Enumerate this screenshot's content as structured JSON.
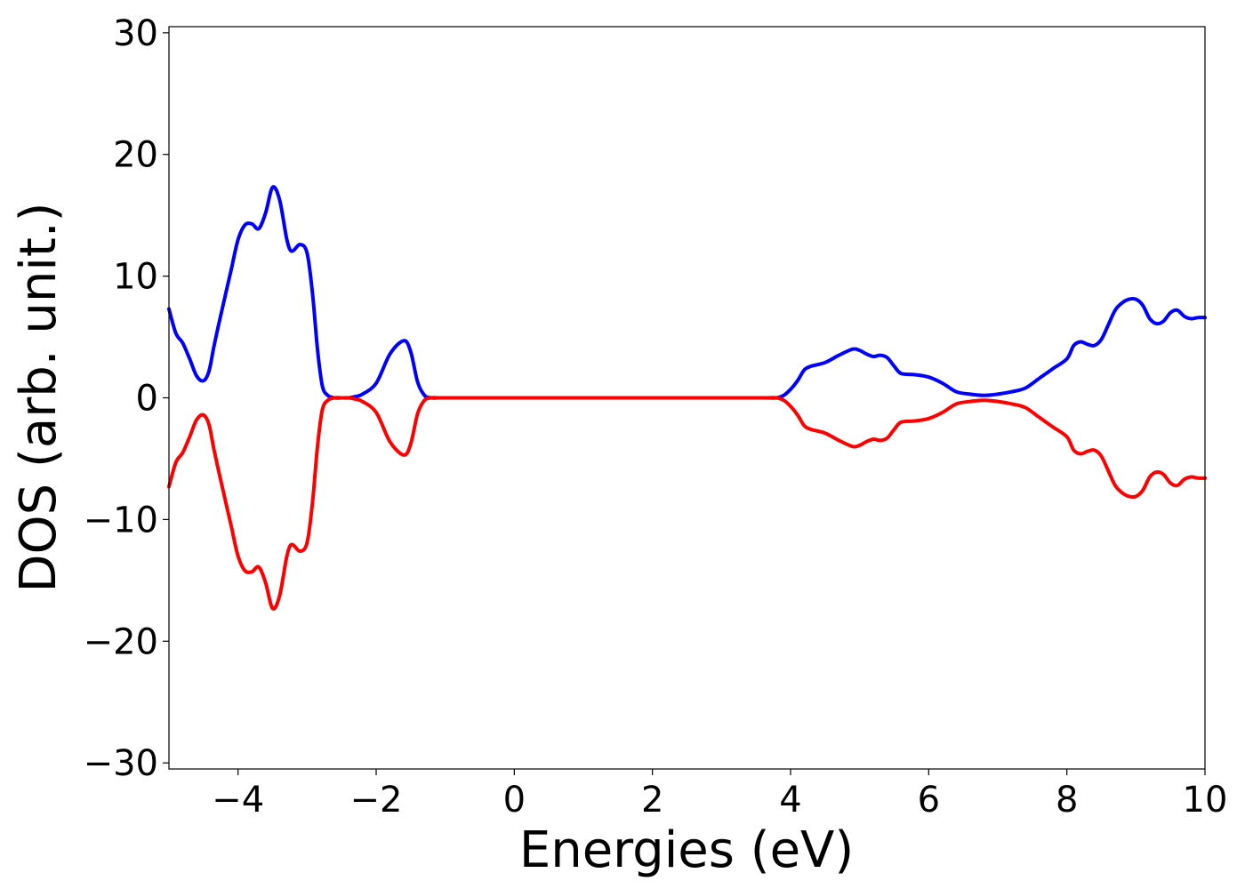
{
  "chart_data": {
    "type": "line",
    "xlabel": "Energies (eV)",
    "ylabel": "DOS (arb. unit.)",
    "xlim": [
      -5,
      10
    ],
    "ylim": [
      -30.5,
      30.5
    ],
    "xticks": [
      -4,
      -2,
      0,
      2,
      4,
      6,
      8,
      10
    ],
    "yticks": [
      -30,
      -20,
      -10,
      0,
      10,
      20,
      30
    ],
    "tick_labels_x": [
      "−4",
      "−2",
      "0",
      "2",
      "4",
      "6",
      "8",
      "10"
    ],
    "tick_labels_y": [
      "−30",
      "−20",
      "−10",
      "0",
      "10",
      "20",
      "30"
    ],
    "grid": false,
    "legend": "none",
    "series": [
      {
        "color": "#0000ff",
        "x": [
          -5.0,
          -4.9,
          -4.8,
          -4.7,
          -4.6,
          -4.5,
          -4.42,
          -4.35,
          -4.25,
          -4.1,
          -4.0,
          -3.9,
          -3.8,
          -3.7,
          -3.6,
          -3.5,
          -3.4,
          -3.3,
          -3.25,
          -3.2,
          -3.1,
          -3.0,
          -2.92,
          -2.85,
          -2.78,
          -2.7,
          -2.6,
          -2.5,
          -2.4,
          -2.3,
          -2.2,
          -2.0,
          -1.8,
          -1.6,
          -1.5,
          -1.4,
          -1.3,
          -1.2,
          -1.1,
          -1.02,
          -0.95,
          -0.85,
          -0.75,
          -0.65,
          -0.55,
          -0.5,
          0.0,
          1.0,
          2.0,
          3.0,
          3.6,
          3.8,
          3.9,
          4.0,
          4.1,
          4.2,
          4.3,
          4.5,
          4.7,
          4.9,
          5.0,
          5.1,
          5.2,
          5.3,
          5.4,
          5.5,
          5.6,
          5.8,
          6.0,
          6.2,
          6.4,
          6.6,
          6.8,
          7.0,
          7.2,
          7.4,
          7.6,
          7.8,
          8.0,
          8.1,
          8.2,
          8.3,
          8.4,
          8.5,
          8.6,
          8.7,
          8.8,
          8.9,
          9.0,
          9.1,
          9.2,
          9.3,
          9.4,
          9.5,
          9.6,
          9.7,
          9.8,
          9.9,
          10.0
        ],
        "y": [
          7.3,
          5.3,
          4.5,
          3.2,
          1.8,
          1.4,
          2.2,
          4.2,
          6.8,
          10.5,
          13.0,
          14.2,
          14.3,
          13.9,
          15.2,
          17.3,
          16.3,
          13.2,
          12.2,
          12.1,
          12.6,
          11.9,
          8.5,
          4.0,
          1.0,
          0.2,
          0.0,
          0.0,
          0.0,
          0.1,
          0.3,
          1.2,
          3.6,
          4.7,
          3.8,
          1.3,
          0.2,
          0.0,
          0.0,
          0.0,
          0.0,
          0.0,
          0.0,
          0.0,
          0.0,
          0.0,
          0.0,
          0.0,
          0.0,
          0.0,
          0.0,
          0.0,
          0.2,
          0.7,
          1.4,
          2.3,
          2.6,
          2.9,
          3.5,
          4.0,
          3.9,
          3.6,
          3.4,
          3.5,
          3.3,
          2.6,
          2.0,
          1.9,
          1.7,
          1.2,
          0.5,
          0.3,
          0.2,
          0.3,
          0.5,
          0.8,
          1.6,
          2.4,
          3.2,
          4.3,
          4.6,
          4.4,
          4.3,
          4.8,
          6.0,
          7.2,
          7.8,
          8.1,
          8.1,
          7.6,
          6.5,
          6.1,
          6.3,
          7.0,
          7.2,
          6.7,
          6.5,
          6.6,
          6.6
        ]
      },
      {
        "color": "#ff0000",
        "x": [
          -5.0,
          -4.9,
          -4.8,
          -4.7,
          -4.6,
          -4.5,
          -4.42,
          -4.35,
          -4.25,
          -4.1,
          -4.0,
          -3.9,
          -3.8,
          -3.7,
          -3.6,
          -3.5,
          -3.4,
          -3.3,
          -3.25,
          -3.2,
          -3.1,
          -3.0,
          -2.92,
          -2.85,
          -2.78,
          -2.7,
          -2.6,
          -2.5,
          -2.4,
          -2.3,
          -2.2,
          -2.0,
          -1.8,
          -1.6,
          -1.5,
          -1.4,
          -1.3,
          -1.2,
          -1.1,
          -1.02,
          -0.95,
          -0.85,
          -0.75,
          -0.65,
          -0.55,
          -0.5,
          0.0,
          1.0,
          2.0,
          3.0,
          3.6,
          3.8,
          3.9,
          4.0,
          4.1,
          4.2,
          4.3,
          4.5,
          4.7,
          4.9,
          5.0,
          5.1,
          5.2,
          5.3,
          5.4,
          5.5,
          5.6,
          5.8,
          6.0,
          6.2,
          6.4,
          6.6,
          6.8,
          7.0,
          7.2,
          7.4,
          7.6,
          7.8,
          8.0,
          8.1,
          8.2,
          8.3,
          8.4,
          8.5,
          8.6,
          8.7,
          8.8,
          8.9,
          9.0,
          9.1,
          9.2,
          9.3,
          9.4,
          9.5,
          9.6,
          9.7,
          9.8,
          9.9,
          10.0
        ],
        "y": [
          -7.3,
          -5.3,
          -4.5,
          -3.2,
          -1.8,
          -1.4,
          -2.2,
          -4.2,
          -6.8,
          -10.5,
          -13.0,
          -14.2,
          -14.3,
          -13.9,
          -15.2,
          -17.3,
          -16.3,
          -13.2,
          -12.2,
          -12.1,
          -12.6,
          -11.9,
          -8.5,
          -4.0,
          -1.0,
          -0.2,
          -0.0,
          -0.0,
          -0.0,
          -0.1,
          -0.3,
          -1.2,
          -3.6,
          -4.7,
          -3.8,
          -1.3,
          -0.2,
          -0.0,
          -0.0,
          -0.0,
          -0.0,
          -0.0,
          -0.0,
          -0.0,
          -0.0,
          -0.0,
          -0.0,
          -0.0,
          -0.0,
          -0.0,
          -0.0,
          -0.0,
          -0.2,
          -0.7,
          -1.4,
          -2.3,
          -2.6,
          -2.9,
          -3.5,
          -4.0,
          -3.9,
          -3.6,
          -3.4,
          -3.5,
          -3.3,
          -2.6,
          -2.0,
          -1.9,
          -1.7,
          -1.2,
          -0.5,
          -0.3,
          -0.2,
          -0.3,
          -0.5,
          -0.8,
          -1.6,
          -2.4,
          -3.2,
          -4.3,
          -4.6,
          -4.4,
          -4.3,
          -4.8,
          -6.0,
          -7.2,
          -7.8,
          -8.1,
          -8.1,
          -7.6,
          -6.5,
          -6.1,
          -6.3,
          -7.0,
          -7.2,
          -6.7,
          -6.5,
          -6.6,
          -6.6
        ]
      }
    ]
  }
}
